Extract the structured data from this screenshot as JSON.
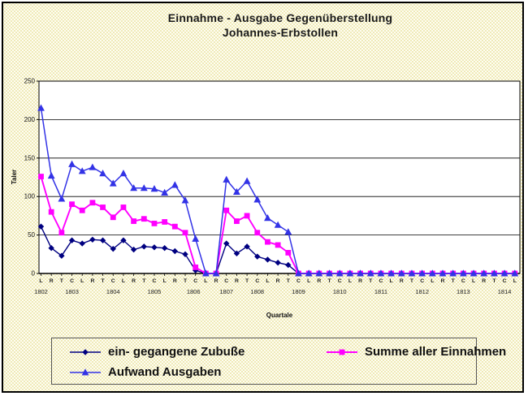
{
  "title": {
    "line1": "Einnahme - Ausgabe Gegenüberstellung",
    "line2": "Johannes-Erbstollen"
  },
  "chart_data": {
    "type": "line",
    "title": "Einnahme - Ausgabe Gegenüberstellung Johannes-Erbstollen",
    "xlabel": "Quartale",
    "ylabel": "Taler",
    "ylim": [
      0,
      250
    ],
    "yticks": [
      0,
      50,
      100,
      150,
      200,
      250
    ],
    "grid": true,
    "legend_position": "bottom",
    "quarter_labels": [
      "L",
      "R",
      "T",
      "C",
      "L",
      "R",
      "T",
      "C",
      "L",
      "R",
      "T",
      "C",
      "L",
      "R",
      "T",
      "C",
      "L",
      "R",
      "C",
      "R",
      "T",
      "C",
      "L",
      "R",
      "T",
      "C",
      "L",
      "R",
      "T",
      "C",
      "L",
      "R",
      "T",
      "C",
      "L",
      "R",
      "T",
      "C",
      "L",
      "R",
      "T",
      "C",
      "L",
      "R",
      "T",
      "C",
      "L"
    ],
    "year_labels": [
      {
        "label": "1802",
        "tick": 0
      },
      {
        "label": "1803",
        "tick": 3
      },
      {
        "label": "1804",
        "tick": 7
      },
      {
        "label": "1805",
        "tick": 11
      },
      {
        "label": "1806",
        "tick": 14.8
      },
      {
        "label": "1807",
        "tick": 18
      },
      {
        "label": "1808",
        "tick": 21
      },
      {
        "label": "1809",
        "tick": 25
      },
      {
        "label": "1810",
        "tick": 29
      },
      {
        "label": "1811",
        "tick": 33
      },
      {
        "label": "1812",
        "tick": 37
      },
      {
        "label": "1813",
        "tick": 41
      },
      {
        "label": "1814",
        "tick": 45
      }
    ],
    "series": [
      {
        "name": "ein- gegangene Zubuße",
        "color": "#000080",
        "marker": "diamond",
        "line_width": 1.4,
        "values": [
          61,
          33,
          23,
          43,
          39,
          44,
          43,
          32,
          43,
          31,
          35,
          34,
          33,
          29,
          25,
          4,
          0,
          0,
          39,
          26,
          35,
          22,
          18,
          14,
          11,
          0,
          0,
          0,
          0,
          0,
          0,
          0,
          0,
          0,
          0,
          0,
          0,
          0,
          0,
          0,
          0,
          0,
          0,
          0,
          0,
          0,
          0
        ]
      },
      {
        "name": "Summe aller Einnahmen",
        "color": "#ff00ff",
        "marker": "square",
        "line_width": 1.9,
        "values": [
          126,
          80,
          53,
          90,
          82,
          92,
          86,
          73,
          86,
          68,
          71,
          65,
          67,
          61,
          53,
          8,
          0,
          0,
          82,
          68,
          75,
          53,
          41,
          37,
          27,
          0,
          0,
          0,
          0,
          0,
          0,
          0,
          0,
          0,
          0,
          0,
          0,
          0,
          0,
          0,
          0,
          0,
          0,
          0,
          0,
          0,
          0
        ]
      },
      {
        "name": "Aufwand Ausgaben",
        "color": "#3333e6",
        "marker": "triangle",
        "line_width": 1.5,
        "values": [
          215,
          127,
          97,
          142,
          133,
          138,
          130,
          117,
          130,
          111,
          111,
          110,
          105,
          115,
          95,
          45,
          0,
          0,
          122,
          106,
          120,
          96,
          72,
          63,
          54,
          0,
          0,
          0,
          0,
          0,
          0,
          0,
          0,
          0,
          0,
          0,
          0,
          0,
          0,
          0,
          0,
          0,
          0,
          0,
          0,
          0,
          0
        ]
      }
    ]
  }
}
